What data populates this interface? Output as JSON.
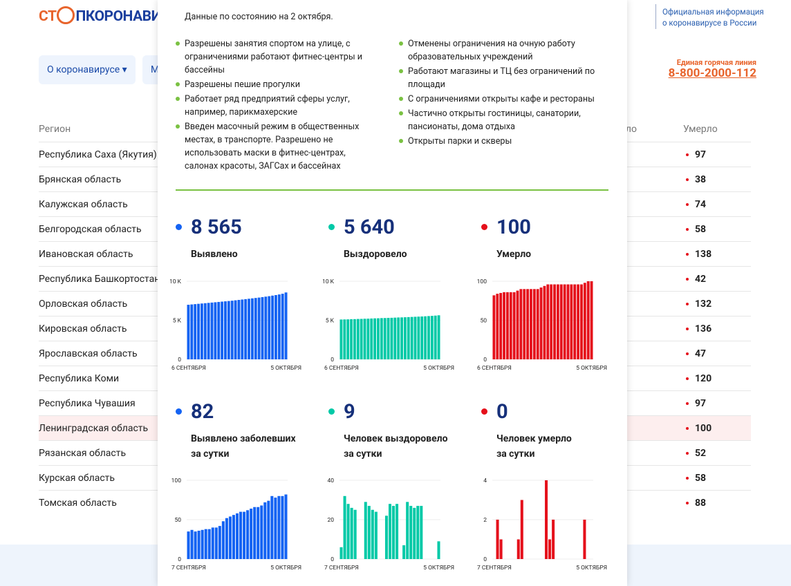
{
  "header": {
    "logo": {
      "part1": "СТ",
      "part2": "ПКОРОНАВИРУС"
    },
    "official": [
      "Официальная информация",
      "о коронавирусе в России"
    ],
    "nav": [
      "О коронавирусе ▾",
      "М"
    ],
    "hotline_label": "Единая горячая линия",
    "hotline": "8-800-2000-112"
  },
  "table": {
    "headers": [
      "Регион",
      "Выздоровело",
      "Умерло"
    ],
    "highlighted_row": 11,
    "rows": [
      [
        "Республика Саха (Якутия)",
        "97"
      ],
      [
        "Брянская область",
        "38"
      ],
      [
        "Калужская область",
        "74"
      ],
      [
        "Белгородская область",
        "58"
      ],
      [
        "Ивановская область",
        "138"
      ],
      [
        "Республика Башкортостан",
        "42"
      ],
      [
        "Орловская область",
        "132"
      ],
      [
        "Кировская область",
        "136"
      ],
      [
        "Ярославская область",
        "47"
      ],
      [
        "Республика Коми",
        "120"
      ],
      [
        "Республика Чувашия",
        "97"
      ],
      [
        "Ленинградская область",
        "100"
      ],
      [
        "Рязанская область",
        "52"
      ],
      [
        "Курская область",
        "58"
      ],
      [
        "Томская область",
        "88"
      ]
    ]
  },
  "modal": {
    "date": "Данные по состоянию на 2 октября.",
    "left": [
      "Разрешены занятия спортом на улице, с ограничениями работают фитнес-центры и бассейны",
      "Разрешены пешие прогулки",
      "Работает ряд предприятий сферы услуг, например, парикмахерские",
      "Введен масочный режим в общественных местах, в транспорте. Разрешено не использовать маски в фитнес-центрах, салонах красоты, ЗАГСах и бассейнах"
    ],
    "right": [
      "Отменены ограничения на очную работу образовательных учреждений",
      "Работают магазины и ТЦ без ограничений по площади",
      "С ограничениями открыты кафе и рестораны",
      "Частично открыты гостиницы, санатории, пансионаты, дома отдыха",
      "Открыты парки и скверы"
    ],
    "cards": [
      {
        "value": "8 565",
        "label": [
          "Выявлено"
        ],
        "color": "#1463f3",
        "chart": {
          "type": "bar",
          "categories": [
            "6 СЕНТЯБРЯ",
            null,
            null,
            null,
            null,
            null,
            null,
            null,
            null,
            null,
            null,
            null,
            null,
            null,
            null,
            null,
            null,
            null,
            null,
            null,
            null,
            null,
            null,
            null,
            null,
            null,
            null,
            null,
            null,
            "5 ОКТЯБРЯ"
          ],
          "values": [
            6990,
            7030,
            7070,
            7110,
            7150,
            7190,
            7230,
            7270,
            7310,
            7350,
            7390,
            7430,
            7470,
            7510,
            7560,
            7610,
            7660,
            7710,
            7760,
            7810,
            7860,
            7910,
            7970,
            8030,
            8090,
            8160,
            8230,
            8310,
            8400,
            8565
          ],
          "ylim": [
            0,
            10000
          ],
          "yticks": [
            0,
            {
              "value": 5000,
              "label": "5 K"
            },
            {
              "value": 10000,
              "label": "10 K"
            }
          ]
        }
      },
      {
        "value": "5 640",
        "label": [
          "Выздоровело"
        ],
        "color": "#00c9a7",
        "chart": {
          "type": "bar",
          "categories": [
            "6 СЕНТЯБРЯ",
            null,
            null,
            null,
            null,
            null,
            null,
            null,
            null,
            null,
            null,
            null,
            null,
            null,
            null,
            null,
            null,
            null,
            null,
            null,
            null,
            null,
            null,
            null,
            null,
            null,
            null,
            null,
            null,
            "5 ОКТЯБРЯ"
          ],
          "values": [
            5100,
            5110,
            5120,
            5140,
            5150,
            5170,
            5180,
            5200,
            5210,
            5230,
            5250,
            5260,
            5280,
            5290,
            5310,
            5320,
            5340,
            5360,
            5370,
            5390,
            5410,
            5430,
            5450,
            5470,
            5490,
            5510,
            5540,
            5570,
            5600,
            5640
          ],
          "ylim": [
            0,
            10000
          ],
          "yticks": [
            0,
            {
              "value": 5000,
              "label": "5 K"
            },
            {
              "value": 10000,
              "label": "10 K"
            }
          ]
        }
      },
      {
        "value": "100",
        "label": [
          "Умерло"
        ],
        "color": "#e5101b",
        "chart": {
          "type": "bar",
          "categories": [
            "6 СЕНТЯБРЯ",
            null,
            null,
            null,
            null,
            null,
            null,
            null,
            null,
            null,
            null,
            null,
            null,
            null,
            null,
            null,
            null,
            null,
            null,
            null,
            null,
            null,
            null,
            null,
            null,
            null,
            null,
            null,
            null,
            "5 ОКТЯБРЯ"
          ],
          "values": [
            82,
            84,
            85,
            86,
            86,
            86,
            86,
            88,
            90,
            90,
            90,
            90,
            90,
            90,
            92,
            94,
            96,
            96,
            96,
            96,
            96,
            96,
            96,
            96,
            96,
            96,
            96,
            98,
            100,
            100
          ],
          "ylim": [
            0,
            100
          ],
          "yticks": [
            0,
            50,
            100
          ]
        }
      },
      {
        "value": "82",
        "label": [
          "Выявлено заболевших",
          "за сутки"
        ],
        "color": "#1463f3",
        "chart": {
          "type": "bar",
          "categories": [
            "7 СЕНТЯБРЯ",
            null,
            null,
            null,
            null,
            null,
            null,
            null,
            null,
            null,
            null,
            null,
            null,
            null,
            null,
            null,
            null,
            null,
            null,
            null,
            null,
            null,
            null,
            null,
            null,
            null,
            null,
            null,
            "5 ОКТЯБРЯ"
          ],
          "values": [
            35,
            37,
            35,
            36,
            37,
            38,
            38,
            40,
            40,
            42,
            48,
            52,
            54,
            56,
            58,
            60,
            60,
            62,
            64,
            66,
            66,
            68,
            72,
            74,
            80,
            78,
            80,
            80,
            82
          ],
          "ylim": [
            0,
            100
          ],
          "yticks": [
            0,
            50,
            100
          ]
        }
      },
      {
        "value": "9",
        "label": [
          "Человек выздоровело",
          "за сутки"
        ],
        "color": "#00c9a7",
        "chart": {
          "type": "bar",
          "categories": [
            "7 СЕНТЯБРЯ",
            null,
            null,
            null,
            null,
            null,
            null,
            null,
            null,
            null,
            null,
            null,
            null,
            null,
            null,
            null,
            null,
            null,
            null,
            null,
            null,
            null,
            null,
            null,
            null,
            null,
            null,
            null,
            "5 ОКТЯБРЯ"
          ],
          "values": [
            6,
            32,
            28,
            26,
            25,
            0,
            0,
            29,
            27,
            25,
            24,
            0,
            0,
            22,
            28,
            27,
            28,
            0,
            7,
            29,
            27,
            26,
            27,
            27,
            0,
            0,
            0,
            0,
            9
          ],
          "ylim": [
            0,
            40
          ],
          "yticks": [
            0,
            20,
            40
          ]
        }
      },
      {
        "value": "0",
        "label": [
          "Человек умерло",
          "за сутки"
        ],
        "color": "#e5101b",
        "chart": {
          "type": "bar",
          "categories": [
            "7 СЕНТЯБРЯ",
            null,
            null,
            null,
            null,
            null,
            null,
            null,
            null,
            null,
            null,
            null,
            null,
            null,
            null,
            null,
            null,
            null,
            null,
            null,
            null,
            null,
            null,
            null,
            null,
            null,
            null,
            null,
            "5 ОКТЯБРЯ"
          ],
          "values": [
            0,
            2,
            1,
            0,
            0,
            0,
            0,
            1,
            3,
            0,
            0,
            0,
            0,
            0,
            0,
            4,
            1,
            2,
            0,
            0,
            0,
            0,
            0,
            0,
            0,
            0,
            2,
            0,
            0
          ],
          "ylim": [
            0,
            4
          ],
          "yticks": [
            0,
            2,
            4
          ]
        }
      }
    ]
  }
}
